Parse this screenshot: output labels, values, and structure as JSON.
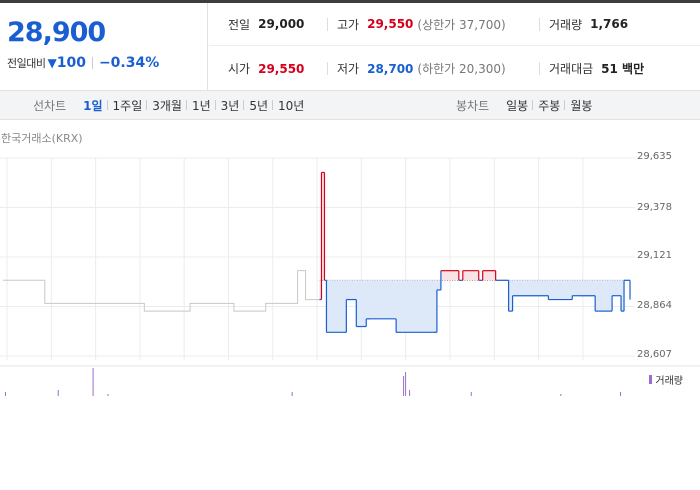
{
  "price": {
    "current": "28,900",
    "compare_label": "전일대비",
    "direction_icon": "down-triangle-icon",
    "change": "100",
    "change_rate": "−0.34%"
  },
  "info": {
    "prev_close_label": "전일",
    "prev_close": "29,000",
    "high_label": "고가",
    "high": "29,550",
    "upper_limit": "(상한가 37,700)",
    "volume_label": "거래량",
    "volume": "1,766",
    "open_label": "시가",
    "open": "29,550",
    "low_label": "저가",
    "low": "28,700",
    "lower_limit": "(하한가 20,300)",
    "trade_value_label": "거래대금",
    "trade_value": "51 백만"
  },
  "tabs": {
    "line_chart_title": "선차트",
    "line_periods": [
      "1일",
      "1주일",
      "3개월",
      "1년",
      "3년",
      "5년",
      "10년"
    ],
    "line_active": "1일",
    "candle_chart_title": "봉차트",
    "candle_periods": [
      "일봉",
      "주봉",
      "월봉"
    ]
  },
  "chart_meta": {
    "exchange": "한국거래소(KRX)",
    "volume_legend": "거래량",
    "up_color": "#d7001b",
    "down_color": "#1a5fd1"
  },
  "chart_data": {
    "type": "line",
    "title": "",
    "ylim": [
      28607,
      29635
    ],
    "y_ticks": [
      "29,635",
      "29,378",
      "29,121",
      "28,864",
      "28,607"
    ],
    "baseline": 29000,
    "grid": true,
    "series": [
      {
        "x": [
          0,
          40,
          42,
          75,
          78,
          110,
          112,
          140,
          142,
          185,
          188,
          230,
          232,
          262,
          264,
          295,
          296,
          302,
          304,
          318,
          320,
          323,
          325,
          342,
          345,
          355,
          360,
          365,
          370,
          395,
          400,
          432,
          436,
          440,
          445,
          458,
          462,
          478,
          482,
          495,
          500,
          508,
          512,
          545,
          548,
          572,
          578,
          595,
          598,
          612,
          616,
          621,
          624,
          630
        ],
        "y": [
          29000,
          29000,
          28880,
          28880,
          28880,
          28880,
          28880,
          28880,
          28840,
          28840,
          28880,
          28880,
          28840,
          28840,
          28880,
          28880,
          29050,
          29050,
          28900,
          28900,
          29560,
          29000,
          28730,
          28730,
          28900,
          28760,
          28760,
          28800,
          28800,
          28730,
          28730,
          28730,
          28950,
          29050,
          29050,
          29000,
          29050,
          29000,
          29050,
          29000,
          29000,
          28840,
          28920,
          28920,
          28900,
          28920,
          28920,
          28840,
          28840,
          28920,
          28920,
          28840,
          29000,
          28900
        ]
      }
    ],
    "volume": {
      "x": [
        2,
        55,
        90,
        105,
        290,
        402,
        404,
        408,
        470,
        560,
        620
      ],
      "v": [
        2,
        3,
        14,
        1,
        2,
        10,
        12,
        3,
        2,
        1,
        2
      ]
    }
  }
}
